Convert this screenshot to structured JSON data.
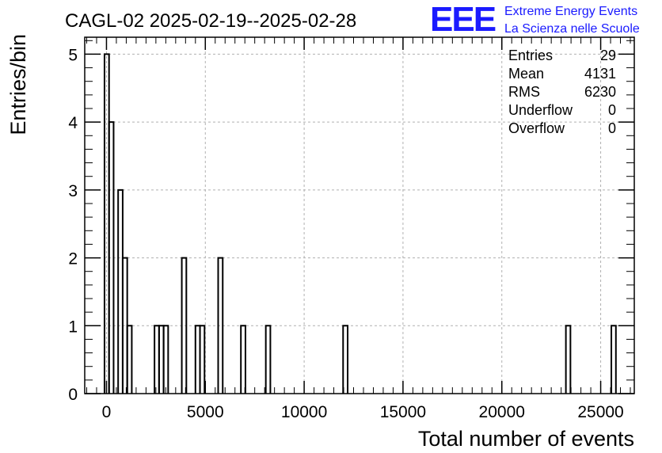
{
  "chart_data": {
    "type": "bar",
    "title": "CAGL-02 2025-02-19--2025-02-28",
    "xlabel": "Total number of events",
    "ylabel": "Entries/bin",
    "xlim": [
      -1100,
      26700
    ],
    "ylim": [
      0,
      5.25
    ],
    "grid": true,
    "x_ticks": [
      0,
      5000,
      10000,
      15000,
      20000,
      25000
    ],
    "y_ticks": [
      0,
      1,
      2,
      3,
      4,
      5
    ],
    "bin_width": 230,
    "bins": [
      {
        "x": -100,
        "value": 5
      },
      {
        "x": 130,
        "value": 4
      },
      {
        "x": 590,
        "value": 3
      },
      {
        "x": 820,
        "value": 2
      },
      {
        "x": 1050,
        "value": 1
      },
      {
        "x": 2430,
        "value": 1
      },
      {
        "x": 2660,
        "value": 1
      },
      {
        "x": 2890,
        "value": 1
      },
      {
        "x": 3810,
        "value": 2
      },
      {
        "x": 4500,
        "value": 1
      },
      {
        "x": 4730,
        "value": 1
      },
      {
        "x": 5650,
        "value": 2
      },
      {
        "x": 6800,
        "value": 1
      },
      {
        "x": 8060,
        "value": 1
      },
      {
        "x": 11970,
        "value": 1
      },
      {
        "x": 23240,
        "value": 1
      },
      {
        "x": 25540,
        "value": 1
      }
    ]
  },
  "stats": [
    {
      "label": "Entries",
      "value": "29"
    },
    {
      "label": "Mean",
      "value": "4131"
    },
    {
      "label": "RMS",
      "value": "6230"
    },
    {
      "label": "Underflow",
      "value": "0"
    },
    {
      "label": "Overflow",
      "value": "0"
    }
  ],
  "logo": {
    "text": "EEE",
    "line1": "Extreme Energy Events",
    "line2": "La Scienza nelle Scuole",
    "color": "#1a1aff"
  },
  "colors": {
    "histogram": "#000000",
    "grid": "#b0b0b0",
    "frame": "#000000"
  }
}
